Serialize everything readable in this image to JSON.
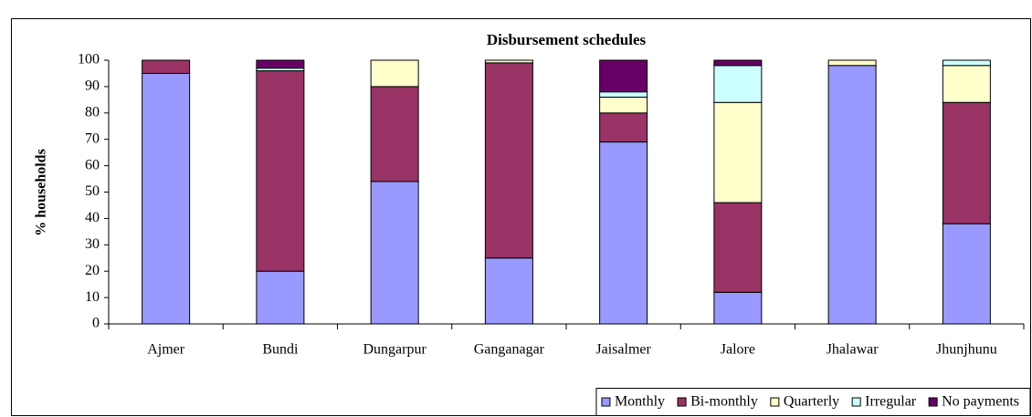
{
  "chart_data": {
    "type": "stacked_bar",
    "title": "Disbursement schedules",
    "y_label": "% households",
    "categories": [
      "Ajmer",
      "Bundi",
      "Dungarpur",
      "Ganganagar",
      "Jaisalmer",
      "Jalore",
      "Jhalawar",
      "Jhunjhunu"
    ],
    "series": [
      {
        "name": "Monthly",
        "color": "#9999ff",
        "values": [
          95,
          20,
          54,
          25,
          69,
          12,
          98,
          38
        ]
      },
      {
        "name": "Bi-monthly",
        "color": "#993366",
        "values": [
          5,
          76,
          36,
          74,
          11,
          34,
          0,
          46
        ]
      },
      {
        "name": "Quarterly",
        "color": "#ffffcc",
        "values": [
          0,
          0,
          10,
          1,
          6,
          38,
          2,
          14
        ]
      },
      {
        "name": "Irregular",
        "color": "#ccffff",
        "values": [
          0,
          1,
          0,
          0,
          2,
          14,
          0,
          2
        ]
      },
      {
        "name": "No payments",
        "color": "#660066",
        "values": [
          0,
          3,
          0,
          0,
          12,
          2,
          0,
          0
        ]
      }
    ],
    "ylim": [
      0,
      100
    ],
    "yticks": [
      0,
      10,
      20,
      30,
      40,
      50,
      60,
      70,
      80,
      90,
      100
    ],
    "grid": false,
    "legend": "bottom-right"
  }
}
